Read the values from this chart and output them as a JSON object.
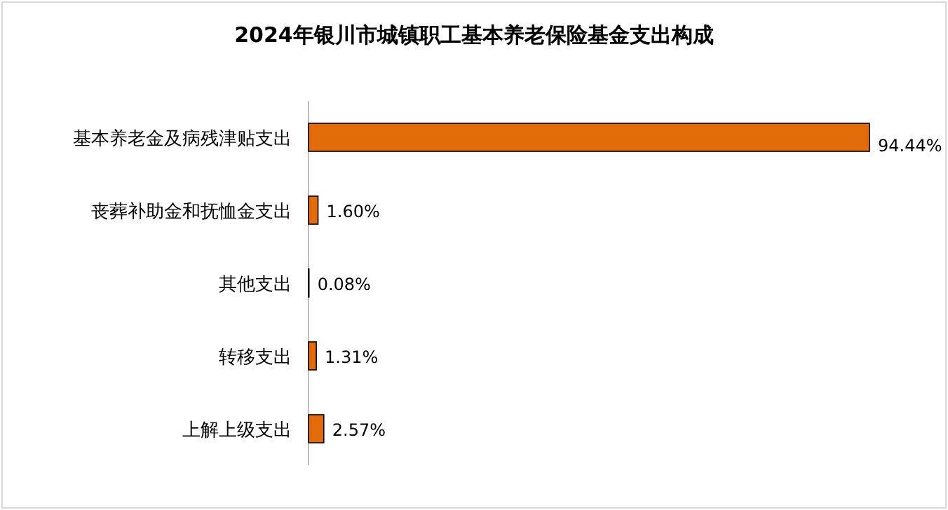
{
  "chart_data": {
    "type": "bar",
    "orientation": "horizontal",
    "title": "2024年银川市城镇职工基本养老保险基金支出构成",
    "categories": [
      "基本养老金及病残津贴支出",
      "丧葬补助金和抚恤金支出",
      "其他支出",
      "转移支出",
      "上解上级支出"
    ],
    "values": [
      94.44,
      1.6,
      0.08,
      1.31,
      2.57
    ],
    "value_labels": [
      "94.44%",
      "1.60%",
      "0.08%",
      "1.31%",
      "2.57%"
    ],
    "color": "#e36c0a"
  }
}
